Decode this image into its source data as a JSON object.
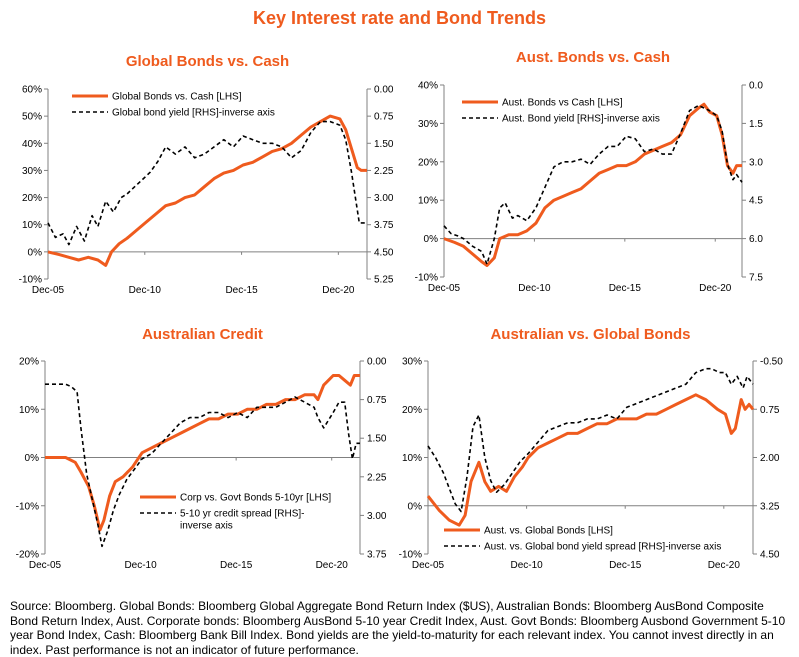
{
  "main_title": "Key Interest rate and Bond Trends",
  "colors": {
    "accent": "#ef5b1e",
    "orange_series": "#ef5b1e",
    "black_series": "#000000",
    "axis": "#808080"
  },
  "source_note": "Source: Bloomberg. Global Bonds: Bloomberg Global Aggregate Bond Return Index ($US), Australian Bonds: Bloomberg AusBond Composite Bond Return Index, Aust. Corporate bonds: Bloomberg AusBond 5-10 year Credit Index, Aust. Govt Bonds: Bloomberg Ausbond Government 5-10 year Bond Index, Cash: Bloomberg Bank Bill Index. Bond yields are the yield-to-maturity for each relevant index. You cannot invest directly in an index. Past performance is not an indicator of future performance.",
  "chart_data": [
    {
      "type": "line",
      "title": "Global Bonds vs. Cash",
      "x_ticks": [
        "Dec-05",
        "Dec-10",
        "Dec-15",
        "Dec-20"
      ],
      "x_range": [
        2005.92,
        2022.4
      ],
      "y_left": {
        "ticks": [
          "60%",
          "50%",
          "40%",
          "30%",
          "20%",
          "10%",
          "0%",
          "-10%"
        ],
        "range": [
          -10,
          60
        ]
      },
      "y_right": {
        "ticks": [
          "0.00",
          "0.75",
          "1.50",
          "2.25",
          "3.00",
          "3.75",
          "4.50",
          "5.25"
        ],
        "range": [
          0,
          5.25
        ],
        "inverted": true
      },
      "legend": "top-left",
      "series": [
        {
          "name": "Global Bonds vs. Cash [LHS]",
          "axis": "left",
          "color": "#ef5b1e",
          "x": [
            2005.92,
            2006.5,
            2007.0,
            2007.5,
            2008.0,
            2008.5,
            2008.9,
            2009.2,
            2009.6,
            2010.0,
            2010.5,
            2011.0,
            2011.5,
            2012.0,
            2012.5,
            2013.0,
            2013.5,
            2014.0,
            2014.5,
            2015.0,
            2015.5,
            2016.0,
            2016.5,
            2017.0,
            2017.5,
            2018.0,
            2018.5,
            2019.0,
            2019.5,
            2020.0,
            2020.5,
            2021.0,
            2021.3,
            2021.6,
            2021.9,
            2022.1,
            2022.4
          ],
          "y": [
            0,
            -1,
            -2,
            -3,
            -2,
            -3,
            -5,
            0,
            3,
            5,
            8,
            11,
            14,
            17,
            18,
            20,
            21,
            24,
            27,
            29,
            30,
            32,
            33,
            35,
            37,
            38,
            40,
            43,
            46,
            48,
            50,
            49,
            45,
            38,
            31,
            30,
            30
          ]
        },
        {
          "name": "Global bond yield [RHS]-inverse axis",
          "axis": "right",
          "color": "#000000",
          "dashed": true,
          "x": [
            2005.92,
            2006.3,
            2006.7,
            2007.0,
            2007.4,
            2007.8,
            2008.2,
            2008.5,
            2008.9,
            2009.3,
            2009.7,
            2010.0,
            2010.4,
            2010.8,
            2011.2,
            2011.6,
            2012.0,
            2012.5,
            2013.0,
            2013.5,
            2014.0,
            2014.5,
            2015.0,
            2015.5,
            2016.0,
            2016.5,
            2017.0,
            2017.5,
            2018.0,
            2018.5,
            2019.0,
            2019.5,
            2020.0,
            2020.5,
            2021.0,
            2021.3,
            2021.6,
            2021.8,
            2022.0,
            2022.2,
            2022.4
          ],
          "y": [
            3.7,
            4.1,
            4.0,
            4.3,
            3.8,
            4.2,
            3.5,
            3.8,
            3.1,
            3.4,
            3.0,
            2.9,
            2.7,
            2.5,
            2.3,
            2.0,
            1.6,
            1.8,
            1.6,
            1.9,
            1.8,
            1.6,
            1.4,
            1.6,
            1.3,
            1.4,
            1.5,
            1.5,
            1.6,
            1.9,
            1.7,
            1.2,
            0.9,
            0.9,
            1.0,
            1.4,
            2.3,
            3.0,
            3.7,
            3.7,
            3.7
          ]
        }
      ]
    },
    {
      "type": "line",
      "title": "Aust. Bonds vs. Cash",
      "x_ticks": [
        "Dec-05",
        "Dec-10",
        "Dec-15",
        "Dec-20"
      ],
      "x_range": [
        2005.92,
        2022.4
      ],
      "y_left": {
        "ticks": [
          "40%",
          "30%",
          "20%",
          "10%",
          "0%",
          "-10%"
        ],
        "range": [
          -10,
          40
        ]
      },
      "y_right": {
        "ticks": [
          "0.0",
          "1.5",
          "3.0",
          "4.5",
          "6.0",
          "7.5"
        ],
        "range": [
          0,
          7.5
        ],
        "inverted": true
      },
      "legend": "top-left",
      "series": [
        {
          "name": "Aust. Bonds vs Cash [LHS]",
          "axis": "left",
          "color": "#ef5b1e",
          "x": [
            2005.92,
            2006.5,
            2007.0,
            2007.5,
            2008.0,
            2008.3,
            2008.7,
            2009.0,
            2009.5,
            2010.0,
            2010.5,
            2011.0,
            2011.5,
            2012.0,
            2012.5,
            2013.0,
            2013.5,
            2014.0,
            2014.5,
            2015.0,
            2015.5,
            2016.0,
            2016.5,
            2017.0,
            2017.5,
            2018.0,
            2018.5,
            2019.0,
            2019.5,
            2020.0,
            2020.3,
            2020.6,
            2021.0,
            2021.3,
            2021.6,
            2021.9,
            2022.1,
            2022.4
          ],
          "y": [
            0,
            -1,
            -2,
            -4,
            -6,
            -7,
            -5,
            0,
            1,
            1,
            2,
            4,
            8,
            10,
            11,
            12,
            13,
            15,
            17,
            18,
            19,
            19,
            20,
            22,
            23,
            24,
            25,
            27,
            32,
            34,
            35,
            33,
            32,
            27,
            19,
            17,
            19,
            19
          ]
        },
        {
          "name": "Aust. Bond yield [RHS]-inverse axis",
          "axis": "right",
          "color": "#000000",
          "dashed": true,
          "x": [
            2005.92,
            2006.3,
            2006.7,
            2007.0,
            2007.5,
            2008.0,
            2008.3,
            2008.7,
            2009.0,
            2009.3,
            2009.7,
            2010.0,
            2010.5,
            2011.0,
            2011.5,
            2012.0,
            2012.5,
            2013.0,
            2013.5,
            2014.0,
            2014.5,
            2015.0,
            2015.5,
            2016.0,
            2016.5,
            2017.0,
            2017.5,
            2018.0,
            2018.5,
            2019.0,
            2019.5,
            2020.0,
            2020.3,
            2020.6,
            2021.0,
            2021.3,
            2021.6,
            2021.9,
            2022.1,
            2022.4
          ],
          "y": [
            5.5,
            5.8,
            5.9,
            6.0,
            6.3,
            6.5,
            7.0,
            6.0,
            4.8,
            4.6,
            5.2,
            5.1,
            5.3,
            4.8,
            4.0,
            3.2,
            3.0,
            3.0,
            2.9,
            3.1,
            2.7,
            2.4,
            2.4,
            2.0,
            2.1,
            2.6,
            2.5,
            2.7,
            2.7,
            1.9,
            1.0,
            0.8,
            0.9,
            1.0,
            1.2,
            1.8,
            3.1,
            3.7,
            3.5,
            3.8
          ]
        }
      ]
    },
    {
      "type": "line",
      "title": "Australian Credit",
      "x_ticks": [
        "Dec-05",
        "Dec-10",
        "Dec-15",
        "Dec-20"
      ],
      "x_range": [
        2005.92,
        2022.4
      ],
      "y_left": {
        "ticks": [
          "20%",
          "10%",
          "0%",
          "-10%",
          "-20%"
        ],
        "range": [
          -20,
          20
        ]
      },
      "y_right": {
        "ticks": [
          "0.00",
          "0.75",
          "1.50",
          "2.25",
          "3.00",
          "3.75"
        ],
        "range": [
          0,
          3.75
        ],
        "inverted": true
      },
      "legend": "bottom-center",
      "series": [
        {
          "name": "Corp vs. Govt Bonds 5-10yr [LHS]",
          "axis": "left",
          "color": "#ef5b1e",
          "x": [
            2005.92,
            2006.5,
            2007.0,
            2007.5,
            2007.8,
            2008.2,
            2008.5,
            2008.8,
            2009.0,
            2009.3,
            2009.6,
            2010.0,
            2010.5,
            2011.0,
            2011.5,
            2012.0,
            2012.5,
            2013.0,
            2013.5,
            2014.0,
            2014.5,
            2015.0,
            2015.5,
            2016.0,
            2016.5,
            2017.0,
            2017.5,
            2018.0,
            2018.5,
            2019.0,
            2019.5,
            2020.0,
            2020.2,
            2020.5,
            2021.0,
            2021.3,
            2021.6,
            2021.9,
            2022.1,
            2022.4
          ],
          "y": [
            0,
            0,
            0,
            -1,
            -3,
            -6,
            -10,
            -15,
            -13,
            -8,
            -5,
            -4,
            -2,
            1,
            2,
            3,
            4,
            5,
            6,
            7,
            8,
            8,
            9,
            9,
            10,
            10,
            11,
            11,
            12,
            12,
            13,
            13,
            12,
            15,
            17,
            17,
            16,
            15,
            17,
            17
          ]
        },
        {
          "name": "5-10 yr credit spread [RHS]-inverse axis",
          "axis": "right",
          "color": "#000000",
          "dashed": true,
          "x": [
            2005.92,
            2006.5,
            2007.0,
            2007.3,
            2007.6,
            2007.8,
            2008.1,
            2008.4,
            2008.7,
            2008.9,
            2009.2,
            2009.5,
            2009.8,
            2010.2,
            2010.6,
            2011.0,
            2011.5,
            2012.0,
            2012.5,
            2013.0,
            2013.5,
            2014.0,
            2014.5,
            2015.0,
            2015.5,
            2016.0,
            2016.5,
            2017.0,
            2017.5,
            2018.0,
            2018.5,
            2019.0,
            2019.5,
            2020.0,
            2020.2,
            2020.5,
            2021.0,
            2021.3,
            2021.6,
            2021.8,
            2022.0,
            2022.2,
            2022.4
          ],
          "y": [
            0.45,
            0.45,
            0.45,
            0.5,
            0.6,
            1.3,
            2.2,
            2.7,
            3.2,
            3.6,
            3.3,
            2.9,
            2.6,
            2.3,
            2.1,
            1.9,
            1.8,
            1.6,
            1.4,
            1.2,
            1.1,
            1.1,
            1.0,
            1.0,
            1.1,
            1.0,
            1.1,
            0.9,
            0.9,
            0.9,
            0.8,
            0.7,
            0.8,
            0.9,
            1.1,
            1.3,
            1.0,
            0.8,
            0.8,
            1.4,
            1.9,
            1.6,
            1.6
          ]
        }
      ]
    },
    {
      "type": "line",
      "title": "Australian vs. Global Bonds",
      "x_ticks": [
        "Dec-05",
        "Dec-10",
        "Dec-15",
        "Dec-20"
      ],
      "x_range": [
        2005.92,
        2022.4
      ],
      "y_left": {
        "ticks": [
          "30%",
          "20%",
          "10%",
          "0%",
          "-10%"
        ],
        "range": [
          -10,
          30
        ]
      },
      "y_right": {
        "ticks": [
          "-0.50",
          "0.75",
          "2.00",
          "3.25",
          "4.50"
        ],
        "range": [
          -0.5,
          4.5
        ],
        "inverted": true
      },
      "legend": "bottom-center",
      "series": [
        {
          "name": "Aust. vs. Global Bonds [LHS]",
          "axis": "left",
          "color": "#ef5b1e",
          "x": [
            2005.92,
            2006.5,
            2007.0,
            2007.5,
            2007.8,
            2008.1,
            2008.5,
            2008.8,
            2009.1,
            2009.5,
            2009.9,
            2010.3,
            2010.7,
            2011.0,
            2011.5,
            2012.0,
            2012.5,
            2013.0,
            2013.5,
            2014.0,
            2014.5,
            2015.0,
            2015.5,
            2016.0,
            2016.5,
            2017.0,
            2017.5,
            2018.0,
            2018.5,
            2019.0,
            2019.5,
            2020.0,
            2020.3,
            2020.6,
            2021.0,
            2021.3,
            2021.5,
            2021.8,
            2022.0,
            2022.2,
            2022.4
          ],
          "y": [
            2,
            -1,
            -3,
            -4,
            -2,
            5,
            9,
            5,
            3,
            4,
            3,
            6,
            8,
            10,
            12,
            13,
            14,
            15,
            15,
            16,
            17,
            17,
            18,
            18,
            18,
            19,
            19,
            20,
            21,
            22,
            23,
            22,
            21,
            20,
            19,
            15,
            16,
            22,
            20,
            21,
            20
          ]
        },
        {
          "name": "Aust. vs. Global bond yield spread [RHS]-inverse axis",
          "axis": "right",
          "color": "#000000",
          "dashed": true,
          "x": [
            2005.92,
            2006.3,
            2006.7,
            2007.0,
            2007.3,
            2007.6,
            2007.9,
            2008.2,
            2008.5,
            2008.8,
            2009.1,
            2009.4,
            2009.8,
            2010.2,
            2010.6,
            2011.0,
            2011.5,
            2012.0,
            2012.5,
            2013.0,
            2013.5,
            2014.0,
            2014.5,
            2015.0,
            2015.5,
            2016.0,
            2016.5,
            2017.0,
            2017.5,
            2018.0,
            2018.5,
            2019.0,
            2019.5,
            2020.0,
            2020.3,
            2020.7,
            2021.0,
            2021.3,
            2021.6,
            2021.9,
            2022.1,
            2022.4
          ],
          "y": [
            1.7,
            2.0,
            2.4,
            2.8,
            3.2,
            3.4,
            2.5,
            1.2,
            0.9,
            2.0,
            2.6,
            2.9,
            2.7,
            2.4,
            2.1,
            1.9,
            1.6,
            1.3,
            1.2,
            1.1,
            1.1,
            1.0,
            1.0,
            0.9,
            1.0,
            0.7,
            0.6,
            0.5,
            0.4,
            0.3,
            0.2,
            0.1,
            -0.2,
            -0.3,
            -0.3,
            -0.2,
            -0.2,
            0.1,
            -0.1,
            0.2,
            -0.1,
            0.1
          ]
        }
      ]
    }
  ]
}
